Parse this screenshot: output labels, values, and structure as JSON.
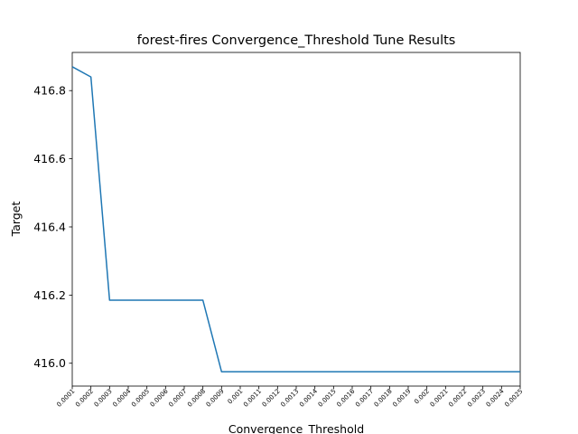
{
  "chart_data": {
    "type": "line",
    "title": "forest-fires Convergence_Threshold Tune Results",
    "xlabel": "Convergence_Threshold",
    "ylabel": "Target",
    "categories": [
      "0.0001",
      "0.0002",
      "0.0003",
      "0.0004",
      "0.0005",
      "0.0006",
      "0.0007",
      "0.0008",
      "0.0009",
      "0.001",
      "0.0011",
      "0.0012",
      "0.0013",
      "0.0014",
      "0.0015",
      "0.0016",
      "0.0017",
      "0.0018",
      "0.0019",
      "0.002",
      "0.0021",
      "0.0022",
      "0.0023",
      "0.0024",
      "0.0025"
    ],
    "series": [
      {
        "color": "#1f77b4",
        "values": [
          416.87,
          416.84,
          416.185,
          416.185,
          416.185,
          416.185,
          416.185,
          416.185,
          415.975,
          415.975,
          415.975,
          415.975,
          415.975,
          415.975,
          415.975,
          415.975,
          415.975,
          415.975,
          415.975,
          415.975,
          415.975,
          415.975,
          415.975,
          415.975,
          415.975
        ]
      }
    ],
    "yticks": [
      "416.0",
      "416.2",
      "416.4",
      "416.6",
      "416.8"
    ],
    "ytick_values": [
      416.0,
      416.2,
      416.4,
      416.6,
      416.8
    ],
    "ylim": [
      415.933,
      416.912
    ],
    "grid": false,
    "legend": "none"
  }
}
